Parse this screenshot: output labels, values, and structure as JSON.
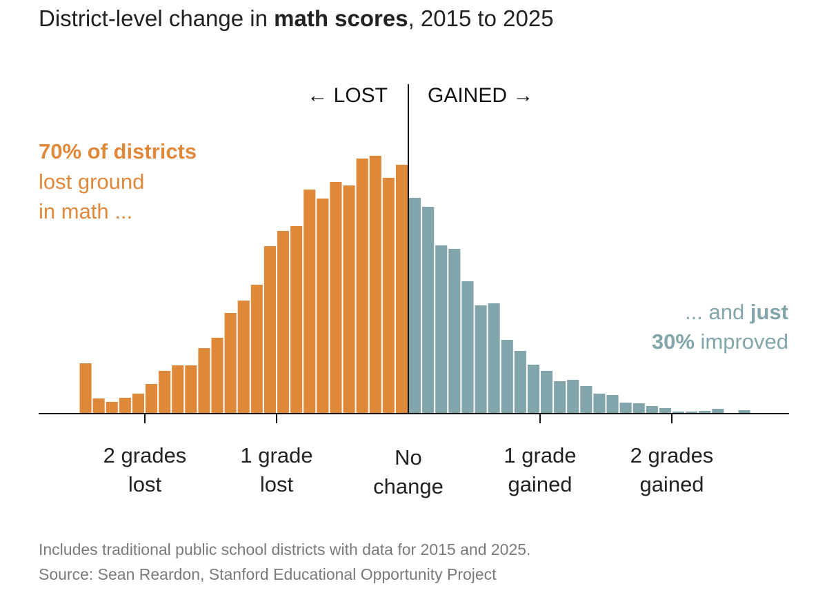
{
  "title": {
    "prefix": "District-level change in ",
    "bold": "math scores",
    "suffix": ", 2015 to 2025"
  },
  "direction_labels": {
    "lost": "← LOST",
    "gained": "GAINED →"
  },
  "annotations": {
    "lost_line1": "70% of districts",
    "lost_line2": "lost ground",
    "lost_line3": "in math ...",
    "gained_line1_a": "... and ",
    "gained_line1_b": "just",
    "gained_line2_a": "30%",
    "gained_line2_b": " improved"
  },
  "footnotes": {
    "line1": "Includes traditional public school districts with data for 2015 and 2025.",
    "line2": "Source: Sean Reardon, Stanford Educational Opportunity Project"
  },
  "colors": {
    "lost": "#e0883a",
    "gained": "#82a5ab",
    "text": "#222222",
    "footnote": "#7a7a7a"
  },
  "chart_data": {
    "type": "bar",
    "xlabel": "",
    "ylabel": "",
    "xlim": [
      -2.95,
      2.85
    ],
    "bin_width": 0.1,
    "series": [
      {
        "name": "Lost",
        "bins": [
          {
            "x": -2.5,
            "y": 73
          },
          {
            "x": -2.4,
            "y": 22
          },
          {
            "x": -2.3,
            "y": 17
          },
          {
            "x": -2.2,
            "y": 23
          },
          {
            "x": -2.1,
            "y": 29
          },
          {
            "x": -2.0,
            "y": 43
          },
          {
            "x": -1.9,
            "y": 62
          },
          {
            "x": -1.8,
            "y": 70
          },
          {
            "x": -1.7,
            "y": 70
          },
          {
            "x": -1.6,
            "y": 95
          },
          {
            "x": -1.5,
            "y": 110
          },
          {
            "x": -1.4,
            "y": 146
          },
          {
            "x": -1.3,
            "y": 164
          },
          {
            "x": -1.2,
            "y": 187
          },
          {
            "x": -1.1,
            "y": 243
          },
          {
            "x": -1.0,
            "y": 265
          },
          {
            "x": -0.9,
            "y": 272
          },
          {
            "x": -0.8,
            "y": 325
          },
          {
            "x": -0.7,
            "y": 312
          },
          {
            "x": -0.6,
            "y": 336
          },
          {
            "x": -0.5,
            "y": 331
          },
          {
            "x": -0.4,
            "y": 370
          },
          {
            "x": -0.3,
            "y": 374
          },
          {
            "x": -0.2,
            "y": 342
          },
          {
            "x": -0.1,
            "y": 361
          }
        ]
      },
      {
        "name": "Gained",
        "bins": [
          {
            "x": 0.0,
            "y": 313
          },
          {
            "x": 0.1,
            "y": 300
          },
          {
            "x": 0.2,
            "y": 244
          },
          {
            "x": 0.3,
            "y": 239
          },
          {
            "x": 0.4,
            "y": 192
          },
          {
            "x": 0.5,
            "y": 157
          },
          {
            "x": 0.6,
            "y": 160
          },
          {
            "x": 0.7,
            "y": 107
          },
          {
            "x": 0.8,
            "y": 91
          },
          {
            "x": 0.9,
            "y": 71
          },
          {
            "x": 1.0,
            "y": 62
          },
          {
            "x": 1.1,
            "y": 47
          },
          {
            "x": 1.2,
            "y": 49
          },
          {
            "x": 1.3,
            "y": 40
          },
          {
            "x": 1.4,
            "y": 29
          },
          {
            "x": 1.5,
            "y": 27
          },
          {
            "x": 1.6,
            "y": 16
          },
          {
            "x": 1.7,
            "y": 15
          },
          {
            "x": 1.8,
            "y": 11
          },
          {
            "x": 1.9,
            "y": 8
          },
          {
            "x": 2.0,
            "y": 3
          },
          {
            "x": 2.1,
            "y": 3
          },
          {
            "x": 2.2,
            "y": 4
          },
          {
            "x": 2.3,
            "y": 7
          },
          {
            "x": 2.5,
            "y": 5
          }
        ]
      }
    ],
    "ticks": [
      {
        "x": -2,
        "line1": "2 grades",
        "line2": "lost"
      },
      {
        "x": -1,
        "line1": "1 grade",
        "line2": "lost"
      },
      {
        "x": 0,
        "line1": "No",
        "line2": "change"
      },
      {
        "x": 1,
        "line1": "1 grade",
        "line2": "gained"
      },
      {
        "x": 2,
        "line1": "2 grades",
        "line2": "gained"
      }
    ]
  }
}
